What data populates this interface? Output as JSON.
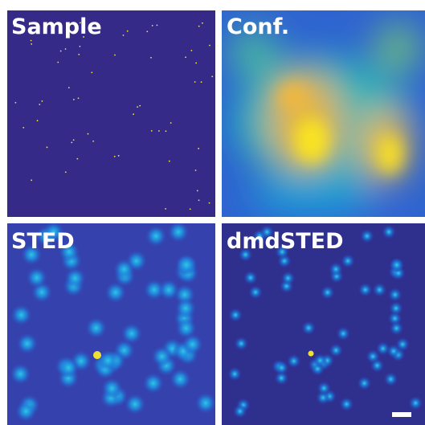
{
  "panels": [
    {
      "label": "Sample"
    },
    {
      "label": "Conf."
    },
    {
      "label": "STED"
    },
    {
      "label": "dmdSTED"
    }
  ]
}
